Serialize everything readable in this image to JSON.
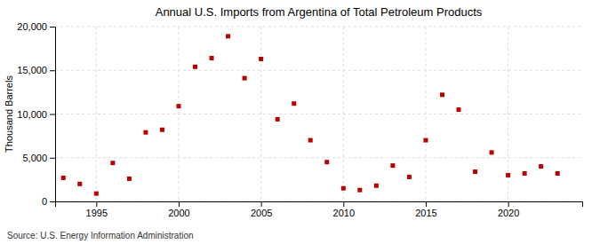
{
  "chart_data": {
    "type": "scatter",
    "title": "Annual U.S. Imports from Argentina of Total Petroleum Products",
    "ylabel": "Thousand Barrels",
    "annotations": [
      "Source: U.S. Energy Information Administration"
    ],
    "x": [
      1993,
      1994,
      1995,
      1996,
      1997,
      1998,
      1999,
      2000,
      2001,
      2002,
      2003,
      2004,
      2005,
      2006,
      2007,
      2008,
      2009,
      2010,
      2011,
      2012,
      2013,
      2014,
      2015,
      2016,
      2017,
      2018,
      2019,
      2020,
      2021,
      2022,
      2023
    ],
    "values": [
      2700,
      2000,
      900,
      4400,
      2600,
      7900,
      8200,
      10900,
      15400,
      16400,
      18900,
      14100,
      16300,
      9400,
      11200,
      7000,
      4500,
      1500,
      1300,
      1800,
      4100,
      2800,
      7000,
      12200,
      10500,
      3400,
      5600,
      3000,
      3200,
      4000,
      3200
    ],
    "color": "#bb0000",
    "marker": "square",
    "xlim": [
      1992.5,
      2024.5
    ],
    "xticks": [
      1995,
      2000,
      2005,
      2010,
      2015,
      2020
    ],
    "ylim": [
      0,
      20000
    ],
    "yticks": [
      0,
      {
        "value": 5000,
        "label": "5,000"
      },
      {
        "value": 10000,
        "label": "10,000"
      },
      {
        "value": 15000,
        "label": "15,000"
      },
      {
        "value": 20000,
        "label": "20,000"
      }
    ],
    "grid": true
  }
}
